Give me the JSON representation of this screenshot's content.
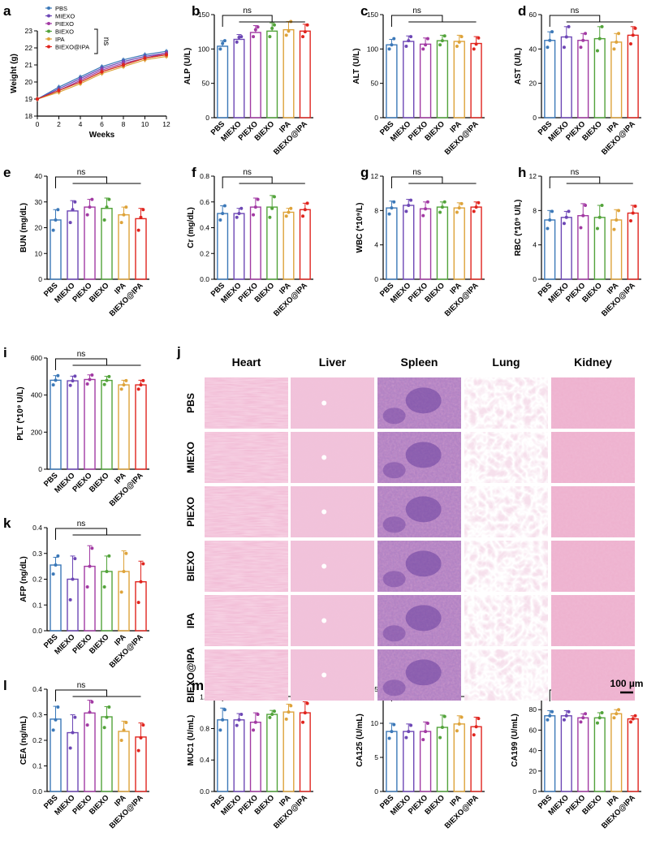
{
  "colors": {
    "PBS": "#3b78b8",
    "MIEXO": "#6d47b5",
    "PIEXO": "#a23aa3",
    "BIEXO": "#52a33a",
    "IPA": "#dea33a",
    "BIEXO@IPA": "#e0241e"
  },
  "groups": [
    "PBS",
    "MIEXO",
    "PIEXO",
    "BIEXO",
    "IPA",
    "BIEXO@IPA"
  ],
  "chart_data": [
    {
      "panel": "a",
      "type": "line",
      "xlabel": "Weeks",
      "ylabel": "Weight (g)",
      "xlim": [
        0,
        12
      ],
      "ylim": [
        18,
        23
      ],
      "xticks": [
        0,
        2,
        4,
        6,
        8,
        10,
        12
      ],
      "yticks": [
        18,
        19,
        20,
        21,
        22,
        23
      ],
      "x": [
        0,
        2,
        4,
        6,
        8,
        10,
        12
      ],
      "annotation": "ns",
      "series": [
        {
          "name": "PBS",
          "values": [
            19.0,
            19.7,
            20.3,
            20.9,
            21.3,
            21.6,
            21.8
          ]
        },
        {
          "name": "MIEXO",
          "values": [
            19.0,
            19.6,
            20.2,
            20.8,
            21.2,
            21.5,
            21.7
          ]
        },
        {
          "name": "PIEXO",
          "values": [
            19.0,
            19.5,
            20.1,
            20.7,
            21.1,
            21.4,
            21.7
          ]
        },
        {
          "name": "BIEXO",
          "values": [
            19.0,
            19.5,
            20.0,
            20.6,
            21.0,
            21.4,
            21.6
          ]
        },
        {
          "name": "IPA",
          "values": [
            19.0,
            19.4,
            19.9,
            20.5,
            20.9,
            21.3,
            21.5
          ]
        },
        {
          "name": "BIEXO@IPA",
          "values": [
            19.0,
            19.5,
            20.0,
            20.6,
            21.0,
            21.4,
            21.6
          ]
        }
      ]
    },
    {
      "panel": "b",
      "type": "bar",
      "ylabel": "ALP (U/L)",
      "ylim": [
        0,
        150
      ],
      "yticks": [
        0,
        50,
        100,
        150
      ],
      "annotation": "ns",
      "values": [
        104,
        114,
        124,
        126,
        128,
        126
      ],
      "errors": [
        8,
        7,
        10,
        12,
        12,
        10
      ],
      "points": [
        [
          100,
          108,
          112
        ],
        [
          110,
          117,
          118
        ],
        [
          118,
          128,
          132
        ],
        [
          118,
          130,
          135
        ],
        [
          120,
          126,
          140
        ],
        [
          118,
          125,
          135
        ]
      ]
    },
    {
      "panel": "c",
      "type": "bar",
      "ylabel": "ALT (U/L)",
      "ylim": [
        0,
        150
      ],
      "yticks": [
        0,
        50,
        100,
        150
      ],
      "annotation": "ns",
      "values": [
        106,
        111,
        107,
        112,
        111,
        108
      ],
      "errors": [
        8,
        8,
        9,
        8,
        9,
        10
      ],
      "points": [
        [
          100,
          106,
          115
        ],
        [
          104,
          112,
          118
        ],
        [
          100,
          106,
          115
        ],
        [
          106,
          112,
          119
        ],
        [
          104,
          110,
          118
        ],
        [
          100,
          107,
          116
        ]
      ]
    },
    {
      "panel": "d",
      "type": "bar",
      "ylabel": "AST (U/L)",
      "ylim": [
        0,
        60
      ],
      "yticks": [
        0,
        20,
        40,
        60
      ],
      "annotation": "ns",
      "values": [
        45,
        47,
        45,
        46,
        44,
        48
      ],
      "errors": [
        5,
        6,
        4,
        7,
        5,
        5
      ],
      "points": [
        [
          41,
          45,
          50
        ],
        [
          41,
          47,
          53
        ],
        [
          41,
          45,
          49
        ],
        [
          39,
          46,
          53
        ],
        [
          40,
          44,
          49
        ],
        [
          43,
          48,
          52
        ]
      ]
    },
    {
      "panel": "e",
      "type": "bar",
      "ylabel": "BUN (mg/dL)",
      "ylim": [
        0,
        40
      ],
      "yticks": [
        0,
        10,
        20,
        30,
        40
      ],
      "annotation": "ns",
      "values": [
        23,
        26.5,
        28,
        27.5,
        25,
        23.5
      ],
      "errors": [
        4,
        4,
        3,
        4,
        3,
        4
      ],
      "points": [
        [
          19,
          23,
          27
        ],
        [
          22,
          27,
          30
        ],
        [
          25,
          28,
          31
        ],
        [
          23,
          28,
          31
        ],
        [
          22,
          25,
          28
        ],
        [
          19,
          24,
          27
        ]
      ]
    },
    {
      "panel": "f",
      "type": "bar",
      "ylabel": "Cr (mg/dL)",
      "ylim": [
        0,
        0.8
      ],
      "yticks": [
        0.0,
        0.2,
        0.4,
        0.6,
        0.8
      ],
      "annotation": "ns",
      "values": [
        0.51,
        0.51,
        0.56,
        0.56,
        0.52,
        0.54
      ],
      "errors": [
        0.06,
        0.04,
        0.07,
        0.09,
        0.03,
        0.05
      ],
      "points": [
        [
          0.46,
          0.51,
          0.57
        ],
        [
          0.48,
          0.51,
          0.55
        ],
        [
          0.5,
          0.56,
          0.62
        ],
        [
          0.48,
          0.55,
          0.64
        ],
        [
          0.49,
          0.52,
          0.55
        ],
        [
          0.49,
          0.54,
          0.59
        ]
      ]
    },
    {
      "panel": "g",
      "type": "bar",
      "ylabel": "WBC (*10⁹/L)",
      "ylim": [
        0,
        12
      ],
      "yticks": [
        0,
        4,
        8,
        12
      ],
      "annotation": "ns",
      "values": [
        8.3,
        8.6,
        8.2,
        8.4,
        8.3,
        8.4
      ],
      "errors": [
        0.8,
        0.7,
        0.8,
        0.6,
        0.6,
        0.6
      ],
      "points": [
        [
          7.6,
          8.3,
          9.0
        ],
        [
          7.9,
          8.6,
          9.2
        ],
        [
          7.4,
          8.2,
          9.0
        ],
        [
          7.8,
          8.4,
          9.0
        ],
        [
          7.8,
          8.3,
          8.8
        ],
        [
          7.9,
          8.4,
          8.9
        ]
      ]
    },
    {
      "panel": "h",
      "type": "bar",
      "ylabel": "RBC (*10⁹ U/L)",
      "ylim": [
        0,
        12
      ],
      "yticks": [
        0,
        4,
        8,
        12
      ],
      "annotation": "ns",
      "values": [
        6.9,
        7.2,
        7.4,
        7.2,
        6.9,
        7.7
      ],
      "errors": [
        1.1,
        0.7,
        1.4,
        1.4,
        1.2,
        0.9
      ],
      "points": [
        [
          5.9,
          6.9,
          7.9
        ],
        [
          6.5,
          7.2,
          7.9
        ],
        [
          6.0,
          7.4,
          8.6
        ],
        [
          5.9,
          7.2,
          8.6
        ],
        [
          5.8,
          6.9,
          8.0
        ],
        [
          6.8,
          7.7,
          8.5
        ]
      ]
    },
    {
      "panel": "i",
      "type": "bar",
      "ylabel": "PLT (*10⁹ U/L)",
      "ylim": [
        0,
        600
      ],
      "yticks": [
        0,
        200,
        400,
        600
      ],
      "annotation": "ns",
      "values": [
        480,
        477,
        484,
        479,
        455,
        455
      ],
      "errors": [
        25,
        25,
        25,
        22,
        25,
        25
      ],
      "points": [
        [
          455,
          480,
          505
        ],
        [
          452,
          477,
          502
        ],
        [
          460,
          484,
          508
        ],
        [
          457,
          479,
          500
        ],
        [
          432,
          455,
          478
        ],
        [
          432,
          455,
          478
        ]
      ]
    },
    {
      "panel": "k",
      "type": "bar",
      "ylabel": "AFP (ng/dL)",
      "ylim": [
        0,
        0.4
      ],
      "yticks": [
        0.0,
        0.1,
        0.2,
        0.3,
        0.4
      ],
      "annotation": "ns",
      "values": [
        0.255,
        0.2,
        0.25,
        0.23,
        0.23,
        0.19
      ],
      "errors": [
        0.03,
        0.09,
        0.08,
        0.06,
        0.08,
        0.08
      ],
      "points": [
        [
          0.22,
          0.255,
          0.29
        ],
        [
          0.12,
          0.2,
          0.28
        ],
        [
          0.17,
          0.25,
          0.32
        ],
        [
          0.17,
          0.23,
          0.29
        ],
        [
          0.15,
          0.23,
          0.3
        ],
        [
          0.11,
          0.19,
          0.26
        ]
      ]
    },
    {
      "panel": "l",
      "type": "bar",
      "ylabel": "CEA (ng/mL)",
      "ylim": [
        0,
        0.4
      ],
      "yticks": [
        0.0,
        0.1,
        0.2,
        0.3,
        0.4
      ],
      "annotation": "ns",
      "values": [
        0.283,
        0.23,
        0.307,
        0.292,
        0.235,
        0.213
      ],
      "errors": [
        0.05,
        0.07,
        0.05,
        0.04,
        0.04,
        0.055
      ],
      "points": [
        [
          0.24,
          0.28,
          0.33
        ],
        [
          0.17,
          0.23,
          0.29
        ],
        [
          0.26,
          0.31,
          0.35
        ],
        [
          0.25,
          0.29,
          0.33
        ],
        [
          0.2,
          0.24,
          0.27
        ],
        [
          0.16,
          0.21,
          0.26
        ]
      ]
    },
    {
      "panel": "m",
      "type": "bar",
      "ylabel": "MUC1 (U/mL)",
      "ylim": [
        0,
        1.3
      ],
      "yticks": [
        0.0,
        0.4,
        0.8,
        1.2
      ],
      "annotation": "ns",
      "values": [
        0.91,
        0.91,
        0.88,
        0.98,
        1.01,
        1.0
      ],
      "errors": [
        0.15,
        0.08,
        0.12,
        0.05,
        0.1,
        0.14
      ],
      "points": [
        [
          0.78,
          0.91,
          1.04
        ],
        [
          0.84,
          0.91,
          0.98
        ],
        [
          0.78,
          0.88,
          0.98
        ],
        [
          0.94,
          0.98,
          1.02
        ],
        [
          0.92,
          1.01,
          1.09
        ],
        [
          0.88,
          1.0,
          1.12
        ]
      ]
    },
    {
      "panel": "n",
      "type": "bar",
      "ylabel": "CA125 (U/mL)",
      "ylim": [
        0,
        15
      ],
      "yticks": [
        0,
        5,
        10,
        15
      ],
      "annotation": "ns",
      "values": [
        8.8,
        8.8,
        8.8,
        9.4,
        9.9,
        9.5
      ],
      "errors": [
        1.2,
        1.1,
        1.4,
        1.8,
        1.2,
        1.4
      ],
      "points": [
        [
          7.8,
          8.8,
          9.8
        ],
        [
          7.9,
          8.8,
          9.7
        ],
        [
          7.6,
          8.8,
          10.0
        ],
        [
          7.9,
          9.4,
          11.0
        ],
        [
          8.9,
          9.9,
          10.9
        ],
        [
          8.3,
          9.5,
          10.7
        ]
      ]
    },
    {
      "panel": "o",
      "type": "bar",
      "ylabel": "CA199 (U/mL)",
      "ylim": [
        0,
        100
      ],
      "yticks": [
        0,
        20,
        40,
        60,
        80,
        100
      ],
      "annotation": "ns",
      "values": [
        74,
        74,
        72,
        72,
        76,
        71
      ],
      "errors": [
        5,
        5,
        4,
        5,
        4,
        3
      ],
      "points": [
        [
          70,
          74,
          78
        ],
        [
          70,
          74,
          78
        ],
        [
          68,
          72,
          76
        ],
        [
          67,
          72,
          77
        ],
        [
          72,
          76,
          80
        ],
        [
          68,
          71,
          74
        ]
      ]
    }
  ],
  "histology": {
    "panel": "j",
    "columns": [
      "Heart",
      "Liver",
      "Spleen",
      "Lung",
      "Kidney"
    ],
    "rows": [
      "PBS",
      "MIEXO",
      "PIEXO",
      "BIEXO",
      "IPA",
      "BIEXO@IPA"
    ],
    "scale_bar": "100 µm"
  }
}
